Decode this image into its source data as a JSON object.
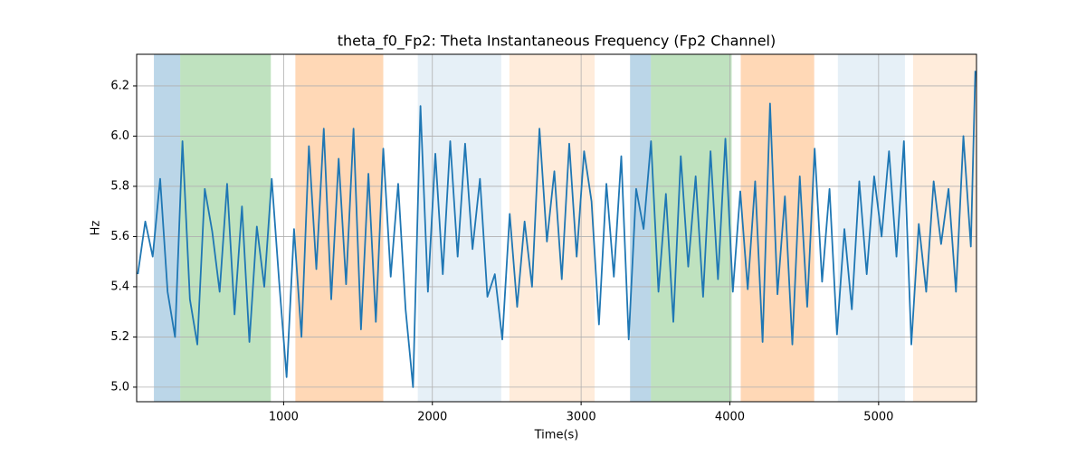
{
  "chart_data": {
    "type": "line",
    "title": "theta_f0_Fp2: Theta Instantaneous Frequency (Fp2 Channel)",
    "x_label": "Time(s)",
    "y_label": "Hz",
    "xlim": [
      12,
      5658
    ],
    "ylim": [
      4.942,
      6.326
    ],
    "xticks": [
      1000,
      2000,
      3000,
      4000,
      5000
    ],
    "yticks": [
      {
        "value": 5,
        "label": "5.0"
      },
      5.2,
      5.4,
      5.6,
      5.8,
      {
        "value": 6,
        "label": "6.0"
      },
      6.2
    ],
    "grid": true,
    "spans": [
      {
        "start": 128,
        "end": 305,
        "color": "#1f77b4",
        "opacity": 0.3
      },
      {
        "start": 305,
        "end": 914,
        "color": "#2ca02c",
        "opacity": 0.3
      },
      {
        "start": 1079,
        "end": 1670,
        "color": "#ff7f0e",
        "opacity": 0.3
      },
      {
        "start": 1902,
        "end": 2463,
        "color": "#1f77b4",
        "opacity": 0.11
      },
      {
        "start": 2518,
        "end": 3091,
        "color": "#ff7f0e",
        "opacity": 0.15
      },
      {
        "start": 3329,
        "end": 3469,
        "color": "#1f77b4",
        "opacity": 0.3
      },
      {
        "start": 3469,
        "end": 4012,
        "color": "#2ca02c",
        "opacity": 0.3
      },
      {
        "start": 4073,
        "end": 4567,
        "color": "#ff7f0e",
        "opacity": 0.3
      },
      {
        "start": 4726,
        "end": 5177,
        "color": "#1f77b4",
        "opacity": 0.11
      },
      {
        "start": 5232,
        "end": 5658,
        "color": "#ff7f0e",
        "opacity": 0.15
      }
    ],
    "x": [
      20,
      70,
      120,
      170,
      220,
      270,
      320,
      370,
      420,
      470,
      520,
      570,
      620,
      670,
      720,
      770,
      820,
      870,
      920,
      970,
      1020,
      1070,
      1120,
      1170,
      1220,
      1270,
      1320,
      1370,
      1420,
      1470,
      1520,
      1570,
      1620,
      1670,
      1720,
      1770,
      1820,
      1870,
      1920,
      1970,
      2020,
      2070,
      2120,
      2170,
      2220,
      2270,
      2320,
      2370,
      2420,
      2470,
      2520,
      2570,
      2620,
      2670,
      2720,
      2770,
      2820,
      2870,
      2920,
      2970,
      3020,
      3070,
      3120,
      3170,
      3220,
      3270,
      3320,
      3370,
      3420,
      3470,
      3520,
      3570,
      3620,
      3670,
      3720,
      3770,
      3820,
      3870,
      3920,
      3970,
      4020,
      4070,
      4120,
      4170,
      4220,
      4270,
      4320,
      4370,
      4420,
      4470,
      4520,
      4570,
      4620,
      4670,
      4720,
      4770,
      4820,
      4870,
      4920,
      4970,
      5020,
      5070,
      5120,
      5170,
      5220,
      5270,
      5320,
      5370,
      5420,
      5470,
      5520,
      5570,
      5620,
      5650
    ],
    "series": [
      {
        "color": "#1f77b4",
        "values": [
          5.45,
          5.66,
          5.52,
          5.83,
          5.38,
          5.2,
          5.98,
          5.35,
          5.17,
          5.79,
          5.62,
          5.38,
          5.81,
          5.29,
          5.72,
          5.18,
          5.64,
          5.4,
          5.83,
          5.42,
          5.04,
          5.63,
          5.2,
          5.96,
          5.47,
          6.03,
          5.35,
          5.91,
          5.41,
          6.03,
          5.23,
          5.85,
          5.26,
          5.95,
          5.44,
          5.81,
          5.31,
          5.0,
          6.12,
          5.38,
          5.93,
          5.45,
          5.98,
          5.52,
          5.97,
          5.55,
          5.83,
          5.36,
          5.45,
          5.19,
          5.69,
          5.32,
          5.66,
          5.4,
          6.03,
          5.58,
          5.86,
          5.43,
          5.97,
          5.52,
          5.94,
          5.74,
          5.25,
          5.81,
          5.44,
          5.92,
          5.19,
          5.79,
          5.63,
          5.98,
          5.38,
          5.77,
          5.26,
          5.92,
          5.48,
          5.84,
          5.36,
          5.94,
          5.43,
          5.99,
          5.38,
          5.78,
          5.39,
          5.82,
          5.18,
          6.13,
          5.37,
          5.76,
          5.17,
          5.84,
          5.32,
          5.95,
          5.42,
          5.79,
          5.21,
          5.63,
          5.31,
          5.82,
          5.45,
          5.84,
          5.6,
          5.94,
          5.52,
          5.98,
          5.17,
          5.65,
          5.38,
          5.82,
          5.57,
          5.79,
          5.38,
          6.0,
          5.56,
          6.26
        ]
      }
    ]
  }
}
